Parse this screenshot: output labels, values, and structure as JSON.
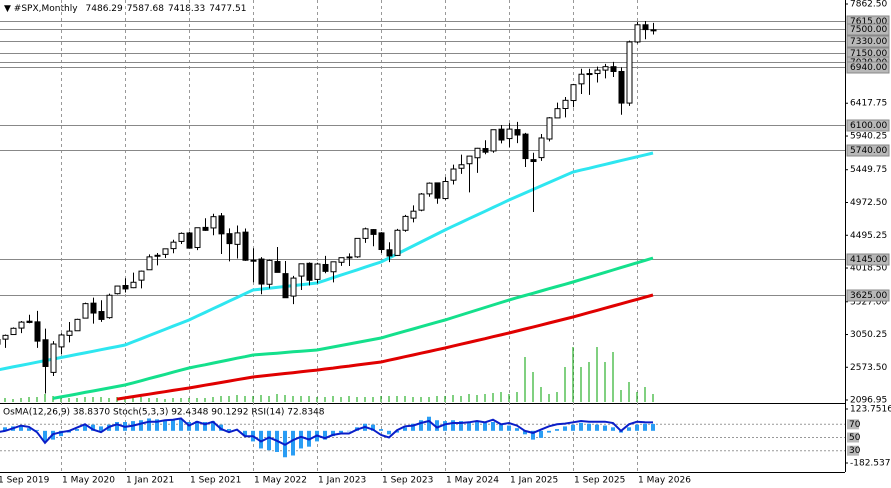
{
  "chart_data": {
    "type": "candlestick",
    "title": "#SPX,Monthly",
    "categories": [
      "1 Sep 2019",
      null,
      null,
      null,
      null,
      null,
      null,
      null,
      "1 May 2020",
      null,
      null,
      null,
      null,
      null,
      null,
      null,
      "1 Jan 2021",
      null,
      null,
      null,
      null,
      null,
      null,
      null,
      "1 Sep 2021",
      null,
      null,
      null,
      null,
      null,
      null,
      null,
      "1 May 2022",
      null,
      null,
      null,
      null,
      null,
      null,
      null,
      "1 Jan 2023",
      null,
      null,
      null,
      null,
      null,
      null,
      null,
      "1 Sep 2023",
      null,
      null,
      null,
      null,
      null,
      null,
      null,
      "1 May 2024",
      null,
      null,
      null,
      null,
      null,
      null,
      null,
      "1 Jan 2025",
      null,
      null,
      null,
      null,
      null,
      null,
      null,
      "1 Sep 2025",
      null,
      null,
      null,
      null,
      null,
      null,
      null,
      "1 May 2026",
      null,
      null
    ],
    "open": [
      2910,
      2983,
      3050,
      3144,
      3244,
      3235,
      2974,
      2499,
      2870,
      3038,
      3105,
      3289,
      3507,
      3385,
      3296,
      3645,
      3764,
      3732,
      3842,
      3993,
      4191,
      4217,
      4301,
      4406,
      4529,
      4317,
      4610,
      4602,
      4778,
      4519,
      4363,
      4541,
      4130,
      4149,
      3782,
      4113,
      3937,
      3610,
      3901,
      4087,
      3853,
      4070,
      3964,
      4102,
      4166,
      4181,
      4450,
      4578,
      4530,
      4284,
      4202,
      4568,
      4745,
      4861,
      5098,
      5258,
      5030,
      5297,
      5471,
      5537,
      5624,
      5758,
      5723,
      6040,
      5903,
      6034,
      5968,
      5597,
      5626,
      5897,
      6204,
      6341,
      6457,
      6700,
      6850,
      6850,
      6900,
      6950,
      6880,
      6420,
      7310,
      7560,
      7486.29
    ],
    "high": [
      3022,
      3050,
      3154,
      3248,
      3338,
      3394,
      3137,
      2955,
      3068,
      3233,
      3279,
      3514,
      3588,
      3550,
      3646,
      3760,
      3870,
      3951,
      3983,
      4218,
      4238,
      4302,
      4430,
      4537,
      4546,
      4608,
      4744,
      4808,
      4819,
      4595,
      4637,
      4594,
      4307,
      4177,
      4141,
      4325,
      4120,
      3905,
      4080,
      4101,
      4095,
      4195,
      4110,
      4170,
      4231,
      4448,
      4607,
      4584,
      4541,
      4393,
      4588,
      4793,
      4931,
      5111,
      5265,
      5264,
      5342,
      5523,
      5670,
      5652,
      5768,
      5878,
      6025,
      6100,
      6128,
      6147,
      5986,
      5696,
      5969,
      6215,
      6427,
      6508,
      6699,
      6920,
      6920,
      6950,
      6990,
      7020,
      6940,
      7330,
      7600,
      7615,
      7587.68
    ],
    "low": [
      2892,
      2856,
      3050,
      3070,
      3215,
      2855,
      2191,
      2447,
      2767,
      2936,
      3101,
      3284,
      3209,
      3234,
      3279,
      3633,
      3662,
      3725,
      3723,
      3992,
      4057,
      4165,
      4234,
      4368,
      4306,
      4279,
      4560,
      4495,
      4223,
      4115,
      4157,
      4123,
      3811,
      3637,
      3722,
      3955,
      3585,
      3492,
      3699,
      3764,
      3795,
      3943,
      3809,
      4049,
      4048,
      4167,
      4385,
      4335,
      4238,
      4104,
      4195,
      4546,
      4683,
      4845,
      5057,
      4954,
      5012,
      5234,
      5390,
      5120,
      5403,
      5675,
      5696,
      5833,
      5774,
      5837,
      5489,
      4835,
      5578,
      5862,
      6202,
      6212,
      6360,
      6552,
      6540,
      6720,
      6780,
      6800,
      6250,
      6380,
      7290,
      7350,
      7418.33
    ],
    "close": [
      2977,
      3038,
      3141,
      3231,
      3226,
      2954,
      2585,
      2912,
      3044,
      3100,
      3271,
      3500,
      3363,
      3270,
      3622,
      3756,
      3714,
      3811,
      3973,
      4181,
      4204,
      4298,
      4395,
      4523,
      4308,
      4605,
      4567,
      4766,
      4516,
      4374,
      4530,
      4132,
      4132,
      3785,
      4130,
      3955,
      3586,
      3872,
      4080,
      3840,
      4077,
      3970,
      4109,
      4169,
      4180,
      4450,
      4589,
      4508,
      4288,
      4194,
      4568,
      4770,
      4846,
      5096,
      5254,
      5036,
      5278,
      5460,
      5522,
      5648,
      5762,
      5705,
      6032,
      5882,
      6041,
      5955,
      5612,
      5569,
      5912,
      6205,
      6339,
      6460,
      6688,
      6840,
      6849,
      6900,
      6950,
      6880,
      6420,
      7310,
      7560,
      7490,
      7477.51
    ],
    "ylim": [
      2096.95,
      7862.5
    ],
    "yticks": [
      {
        "value": 7862.5,
        "label": "7862.50"
      },
      {
        "value": 6417.75,
        "label": "6417.75"
      },
      {
        "value": 5940.25,
        "label": "5940.25"
      },
      {
        "value": 5449.75,
        "label": "5449.75"
      },
      {
        "value": 4972.5,
        "label": "4972.50"
      },
      {
        "value": 4495.25,
        "label": "4495.25"
      },
      {
        "value": 4018.5,
        "label": "4018.50"
      },
      {
        "value": 3527,
        "label": "3527.00"
      },
      {
        "value": 3050.25,
        "label": "3050.25"
      },
      {
        "value": 2573.5,
        "label": "2573.50"
      },
      {
        "value": 2096.95,
        "label": "2096.95"
      }
    ],
    "levels": [
      {
        "value": 7615,
        "label": "7615.00"
      },
      {
        "value": 7500,
        "label": "7500.00"
      },
      {
        "value": 7330,
        "label": "7330.00"
      },
      {
        "value": 7150,
        "label": "7150.00"
      },
      {
        "value": 7020,
        "label": "7020.00"
      },
      {
        "value": 6940,
        "label": "6940.00"
      },
      {
        "value": 6100,
        "label": "6100.00"
      },
      {
        "value": 5740,
        "label": "5740.00"
      },
      {
        "value": 4145,
        "label": "4145.00"
      },
      {
        "value": 3625,
        "label": "3625.00"
      }
    ],
    "series": [
      {
        "color": "#2ee6f0",
        "values": [
          2533,
          2556,
          2579,
          2601,
          2624,
          2647,
          2670,
          2692,
          2715,
          2738,
          2761,
          2783,
          2806,
          2829,
          2852,
          2874,
          2897,
          2943,
          2988,
          3034,
          3080,
          3125,
          3171,
          3216,
          3262,
          3317,
          3371,
          3426,
          3480,
          3535,
          3589,
          3644,
          3698,
          3711,
          3724,
          3736,
          3749,
          3762,
          3775,
          3787,
          3800,
          3838,
          3877,
          3915,
          3953,
          3991,
          4030,
          4068,
          4106,
          4164,
          4223,
          4281,
          4339,
          4397,
          4456,
          4514,
          4572,
          4627,
          4681,
          4736,
          4791,
          4845,
          4900,
          4954,
          5009,
          5060,
          5111,
          5162,
          5213,
          5263,
          5314,
          5365,
          5416,
          5444,
          5471,
          5499,
          5527,
          5555,
          5582,
          5610,
          5638,
          5665,
          5693
        ]
      },
      {
        "color": "#14e08c",
        "values": [
          null,
          null,
          null,
          null,
          null,
          null,
          null,
          2120,
          2142,
          2163,
          2185,
          2207,
          2228,
          2250,
          2272,
          2293,
          2315,
          2346,
          2377,
          2408,
          2439,
          2470,
          2501,
          2532,
          2563,
          2587,
          2610,
          2634,
          2658,
          2681,
          2705,
          2728,
          2752,
          2761,
          2770,
          2779,
          2788,
          2798,
          2807,
          2816,
          2825,
          2847,
          2869,
          2891,
          2913,
          2934,
          2956,
          2978,
          3000,
          3033,
          3066,
          3098,
          3131,
          3164,
          3197,
          3229,
          3262,
          3298,
          3335,
          3371,
          3408,
          3444,
          3480,
          3517,
          3553,
          3586,
          3619,
          3651,
          3684,
          3717,
          3750,
          3782,
          3815,
          3850,
          3885,
          3920,
          3955,
          3990,
          4025,
          4060,
          4095,
          4130,
          4165
        ]
      },
      {
        "color": "#e00000",
        "values": [
          null,
          null,
          null,
          null,
          null,
          null,
          null,
          null,
          null,
          null,
          null,
          null,
          null,
          null,
          null,
          2110,
          2128,
          2146,
          2164,
          2182,
          2200,
          2218,
          2236,
          2254,
          2272,
          2292,
          2312,
          2332,
          2352,
          2372,
          2392,
          2412,
          2432,
          2445,
          2457,
          2470,
          2483,
          2495,
          2508,
          2520,
          2533,
          2548,
          2562,
          2577,
          2591,
          2606,
          2621,
          2635,
          2650,
          2676,
          2701,
          2727,
          2752,
          2778,
          2803,
          2829,
          2854,
          2881,
          2909,
          2936,
          2963,
          2990,
          3018,
          3045,
          3072,
          3101,
          3130,
          3159,
          3188,
          3218,
          3247,
          3276,
          3305,
          3337,
          3369,
          3401,
          3433,
          3465,
          3497,
          3529,
          3561,
          3593,
          3625
        ]
      }
    ],
    "volume": {
      "color": "#00a000",
      "values": [
        4,
        4,
        3,
        4,
        5,
        5,
        8,
        6,
        5,
        4,
        4,
        5,
        5,
        5,
        4,
        5,
        5,
        4,
        5,
        4,
        4,
        3,
        4,
        4,
        4,
        4,
        4,
        5,
        6,
        6,
        7,
        6,
        6,
        7,
        6,
        8,
        7,
        6,
        6,
        6,
        5,
        5,
        6,
        5,
        6,
        5,
        5,
        5,
        6,
        6,
        6,
        6,
        5,
        5,
        5,
        6,
        6,
        7,
        6,
        8,
        7,
        8,
        9,
        10,
        8,
        10,
        45,
        30,
        15,
        8,
        10,
        35,
        55,
        35,
        40,
        55,
        40,
        50,
        12,
        20,
        10,
        15,
        8
      ]
    },
    "indicator_label": "OsMA(12,26,9) 38.8370  Stoch(5,3,3) 92.4348 90.1292  RSI(14) 72.8348",
    "osma": {
      "color": "#2a9df4",
      "ylim": [
        -182.5371,
        123.7516
      ],
      "yticks": [
        123.7516,
        -182.5371
      ],
      "values": [
        10,
        20,
        25,
        25,
        15,
        5,
        -60,
        -50,
        -30,
        -10,
        10,
        30,
        35,
        25,
        35,
        50,
        50,
        55,
        60,
        70,
        65,
        60,
        60,
        65,
        50,
        55,
        50,
        55,
        35,
        10,
        5,
        -30,
        -60,
        -100,
        -110,
        -120,
        -150,
        -140,
        -100,
        -90,
        -60,
        -50,
        -30,
        -10,
        0,
        20,
        40,
        35,
        10,
        -20,
        -10,
        20,
        40,
        60,
        80,
        60,
        55,
        60,
        55,
        50,
        55,
        45,
        50,
        35,
        30,
        15,
        -20,
        -50,
        -40,
        -10,
        10,
        25,
        35,
        45,
        40,
        35,
        30,
        20,
        -10,
        20,
        35,
        40,
        38.837
      ]
    },
    "rsi": {
      "color": "#0a1ec8",
      "ylim": [
        0,
        100
      ],
      "yticks": [
        70,
        50,
        30
      ],
      "values": [
        58,
        60,
        64,
        68,
        66,
        58,
        42,
        55,
        58,
        60,
        65,
        70,
        62,
        58,
        66,
        70,
        66,
        68,
        71,
        74,
        74,
        76,
        77,
        79,
        68,
        74,
        70,
        74,
        63,
        58,
        62,
        52,
        52,
        44,
        50,
        45,
        39,
        46,
        51,
        47,
        53,
        49,
        54,
        56,
        56,
        62,
        66,
        62,
        54,
        50,
        61,
        67,
        68,
        72,
        75,
        65,
        70,
        72,
        72,
        73,
        75,
        73,
        77,
        70,
        72,
        68,
        60,
        57,
        62,
        67,
        70,
        71,
        73,
        75,
        74,
        74,
        74,
        72,
        60,
        70,
        74,
        73,
        72.8348
      ]
    }
  }
}
